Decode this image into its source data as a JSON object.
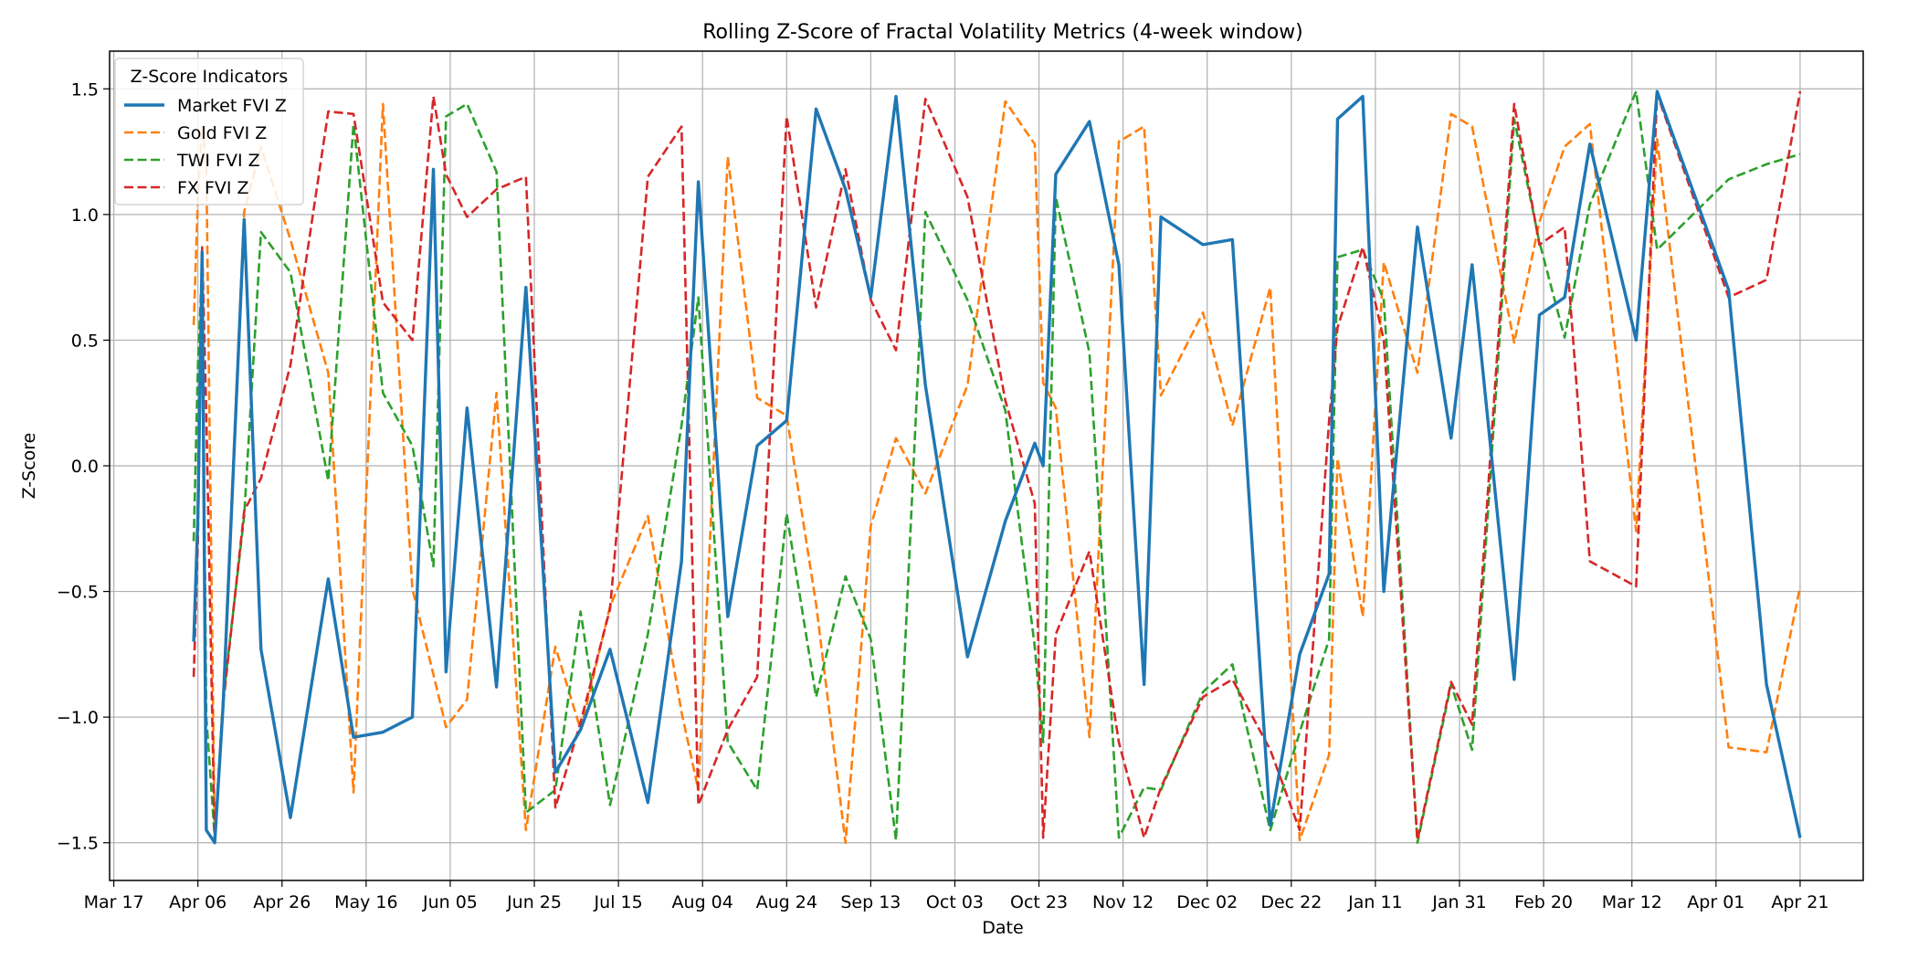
{
  "chart_data": {
    "type": "line",
    "title": "Rolling Z-Score of Fractal Volatility Metrics (4-week window)",
    "xlabel": "Date",
    "ylabel": "Z-Score",
    "ylim": [
      -1.65,
      1.65
    ],
    "xlim": [
      "2023-03-16",
      "2024-05-06"
    ],
    "x_ticks": [
      {
        "date": "2023-03-17",
        "label": "Mar 17"
      },
      {
        "date": "2023-04-06",
        "label": "Apr 06"
      },
      {
        "date": "2023-04-26",
        "label": "Apr 26"
      },
      {
        "date": "2023-05-16",
        "label": "May 16"
      },
      {
        "date": "2023-06-05",
        "label": "Jun 05"
      },
      {
        "date": "2023-06-25",
        "label": "Jun 25"
      },
      {
        "date": "2023-07-15",
        "label": "Jul 15"
      },
      {
        "date": "2023-08-04",
        "label": "Aug 04"
      },
      {
        "date": "2023-08-24",
        "label": "Aug 24"
      },
      {
        "date": "2023-09-13",
        "label": "Sep 13"
      },
      {
        "date": "2023-10-03",
        "label": "Oct 03"
      },
      {
        "date": "2023-10-23",
        "label": "Oct 23"
      },
      {
        "date": "2023-11-12",
        "label": "Nov 12"
      },
      {
        "date": "2023-12-02",
        "label": "Dec 02"
      },
      {
        "date": "2023-12-22",
        "label": "Dec 22"
      },
      {
        "date": "2024-01-11",
        "label": "Jan 11"
      },
      {
        "date": "2024-01-31",
        "label": "Jan 31"
      },
      {
        "date": "2024-02-20",
        "label": "Feb 20"
      },
      {
        "date": "2024-03-12",
        "label": "Mar 12"
      },
      {
        "date": "2024-04-01",
        "label": "Apr 01"
      },
      {
        "date": "2024-04-21",
        "label": "Apr 21"
      }
    ],
    "y_ticks": [
      {
        "value": 1.5,
        "label": "1.5"
      },
      {
        "value": 1.0,
        "label": "1.0"
      },
      {
        "value": 0.5,
        "label": "0.5"
      },
      {
        "value": 0.0,
        "label": "0.0"
      },
      {
        "value": -0.5,
        "label": "−0.5"
      },
      {
        "value": -1.0,
        "label": "−1.0"
      },
      {
        "value": -1.5,
        "label": "−1.5"
      }
    ],
    "grid": true,
    "legend": {
      "title": "Z-Score Indicators",
      "placement": "top-left"
    },
    "series": [
      {
        "name": "Market FVI Z",
        "color": "#1f77b4",
        "dash": "solid",
        "points": [
          [
            "2023-04-05",
            -0.7
          ],
          [
            "2023-04-06",
            -0.2
          ],
          [
            "2023-04-07",
            0.85
          ],
          [
            "2023-04-08",
            -1.45
          ],
          [
            "2023-04-10",
            -1.5
          ],
          [
            "2023-04-12",
            -0.95
          ],
          [
            "2023-04-17",
            0.98
          ],
          [
            "2023-04-21",
            -0.73
          ],
          [
            "2023-04-28",
            -1.4
          ],
          [
            "2023-05-07",
            -0.45
          ],
          [
            "2023-05-13",
            -1.08
          ],
          [
            "2023-05-20",
            -1.06
          ],
          [
            "2023-05-27",
            -1.0
          ],
          [
            "2023-06-01",
            1.18
          ],
          [
            "2023-06-04",
            -0.82
          ],
          [
            "2023-06-09",
            0.23
          ],
          [
            "2023-06-16",
            -0.88
          ],
          [
            "2023-06-23",
            0.71
          ],
          [
            "2023-06-30",
            -1.22
          ],
          [
            "2023-07-06",
            -1.05
          ],
          [
            "2023-07-13",
            -0.73
          ],
          [
            "2023-07-22",
            -1.34
          ],
          [
            "2023-07-30",
            -0.38
          ],
          [
            "2023-08-03",
            1.13
          ],
          [
            "2023-08-10",
            -0.6
          ],
          [
            "2023-08-17",
            0.08
          ],
          [
            "2023-08-24",
            0.18
          ],
          [
            "2023-08-31",
            1.42
          ],
          [
            "2023-09-07",
            1.1
          ],
          [
            "2023-09-13",
            0.67
          ],
          [
            "2023-09-19",
            1.47
          ],
          [
            "2023-09-26",
            0.32
          ],
          [
            "2023-10-06",
            -0.76
          ],
          [
            "2023-10-15",
            -0.22
          ],
          [
            "2023-10-22",
            0.09
          ],
          [
            "2023-10-24",
            0.0
          ],
          [
            "2023-10-27",
            1.16
          ],
          [
            "2023-11-04",
            1.37
          ],
          [
            "2023-11-11",
            0.8
          ],
          [
            "2023-11-17",
            -0.87
          ],
          [
            "2023-11-21",
            0.99
          ],
          [
            "2023-12-01",
            0.88
          ],
          [
            "2023-12-08",
            0.9
          ],
          [
            "2023-12-17",
            -1.43
          ],
          [
            "2023-12-24",
            -0.75
          ],
          [
            "2023-12-31",
            -0.43
          ],
          [
            "2024-01-02",
            1.38
          ],
          [
            "2024-01-08",
            1.47
          ],
          [
            "2024-01-13",
            -0.5
          ],
          [
            "2024-01-21",
            0.95
          ],
          [
            "2024-01-29",
            0.11
          ],
          [
            "2024-02-03",
            0.8
          ],
          [
            "2024-02-13",
            -0.85
          ],
          [
            "2024-02-19",
            0.6
          ],
          [
            "2024-02-25",
            0.67
          ],
          [
            "2024-03-02",
            1.28
          ],
          [
            "2024-03-13",
            0.5
          ],
          [
            "2024-03-18",
            1.49
          ],
          [
            "2024-04-04",
            0.7
          ],
          [
            "2024-04-13",
            -0.87
          ],
          [
            "2024-04-21",
            -1.48
          ]
        ]
      },
      {
        "name": "Gold FVI Z",
        "color": "#ff7f0e",
        "dash": "dashed",
        "points": [
          [
            "2023-04-05",
            0.56
          ],
          [
            "2023-04-06",
            1.07
          ],
          [
            "2023-04-07",
            1.35
          ],
          [
            "2023-04-08",
            1.2
          ],
          [
            "2023-04-10",
            -1.49
          ],
          [
            "2023-04-12",
            -0.92
          ],
          [
            "2023-04-17",
            1.01
          ],
          [
            "2023-04-21",
            1.27
          ],
          [
            "2023-04-28",
            0.9
          ],
          [
            "2023-05-07",
            0.37
          ],
          [
            "2023-05-13",
            -1.3
          ],
          [
            "2023-05-20",
            1.44
          ],
          [
            "2023-05-27",
            -0.49
          ],
          [
            "2023-06-01",
            -0.83
          ],
          [
            "2023-06-04",
            -1.04
          ],
          [
            "2023-06-09",
            -0.93
          ],
          [
            "2023-06-16",
            0.29
          ],
          [
            "2023-06-23",
            -1.45
          ],
          [
            "2023-06-30",
            -0.72
          ],
          [
            "2023-07-06",
            -1.05
          ],
          [
            "2023-07-13",
            -0.56
          ],
          [
            "2023-07-22",
            -0.2
          ],
          [
            "2023-07-30",
            -0.98
          ],
          [
            "2023-08-03",
            -1.29
          ],
          [
            "2023-08-10",
            1.23
          ],
          [
            "2023-08-17",
            0.27
          ],
          [
            "2023-08-24",
            0.2
          ],
          [
            "2023-08-31",
            -0.55
          ],
          [
            "2023-09-07",
            -1.5
          ],
          [
            "2023-09-13",
            -0.24
          ],
          [
            "2023-09-19",
            0.11
          ],
          [
            "2023-09-26",
            -0.11
          ],
          [
            "2023-10-06",
            0.32
          ],
          [
            "2023-10-15",
            1.45
          ],
          [
            "2023-10-22",
            1.28
          ],
          [
            "2023-10-24",
            0.33
          ],
          [
            "2023-10-27",
            0.23
          ],
          [
            "2023-11-04",
            -1.08
          ],
          [
            "2023-11-11",
            1.29
          ],
          [
            "2023-11-17",
            1.35
          ],
          [
            "2023-11-21",
            0.28
          ],
          [
            "2023-12-01",
            0.61
          ],
          [
            "2023-12-08",
            0.16
          ],
          [
            "2023-12-17",
            0.71
          ],
          [
            "2023-12-24",
            -1.49
          ],
          [
            "2023-12-31",
            -1.15
          ],
          [
            "2024-01-02",
            0.03
          ],
          [
            "2024-01-08",
            -0.6
          ],
          [
            "2024-01-13",
            0.81
          ],
          [
            "2024-01-21",
            0.37
          ],
          [
            "2024-01-29",
            1.4
          ],
          [
            "2024-02-03",
            1.35
          ],
          [
            "2024-02-13",
            0.49
          ],
          [
            "2024-02-19",
            0.97
          ],
          [
            "2024-02-25",
            1.27
          ],
          [
            "2024-03-02",
            1.36
          ],
          [
            "2024-03-13",
            -0.26
          ],
          [
            "2024-03-18",
            1.3
          ],
          [
            "2024-04-04",
            -1.12
          ],
          [
            "2024-04-13",
            -1.14
          ],
          [
            "2024-04-21",
            -0.48
          ]
        ]
      },
      {
        "name": "TWI FVI Z",
        "color": "#2ca02c",
        "dash": "dashed",
        "points": [
          [
            "2023-04-05",
            -0.3
          ],
          [
            "2023-04-06",
            0.4
          ],
          [
            "2023-04-07",
            0.8
          ],
          [
            "2023-04-08",
            -1.0
          ],
          [
            "2023-04-10",
            -1.48
          ],
          [
            "2023-04-12",
            -0.93
          ],
          [
            "2023-04-17",
            -0.2
          ],
          [
            "2023-04-21",
            0.93
          ],
          [
            "2023-04-28",
            0.77
          ],
          [
            "2023-05-07",
            -0.06
          ],
          [
            "2023-05-13",
            1.36
          ],
          [
            "2023-05-20",
            0.29
          ],
          [
            "2023-05-27",
            0.08
          ],
          [
            "2023-06-01",
            -0.4
          ],
          [
            "2023-06-04",
            1.39
          ],
          [
            "2023-06-09",
            1.44
          ],
          [
            "2023-06-16",
            1.17
          ],
          [
            "2023-06-23",
            -1.38
          ],
          [
            "2023-06-30",
            -1.29
          ],
          [
            "2023-07-06",
            -0.58
          ],
          [
            "2023-07-13",
            -1.35
          ],
          [
            "2023-07-22",
            -0.67
          ],
          [
            "2023-07-30",
            0.16
          ],
          [
            "2023-08-03",
            0.67
          ],
          [
            "2023-08-10",
            -1.1
          ],
          [
            "2023-08-17",
            -1.29
          ],
          [
            "2023-08-24",
            -0.19
          ],
          [
            "2023-08-31",
            -0.92
          ],
          [
            "2023-09-07",
            -0.44
          ],
          [
            "2023-09-13",
            -0.69
          ],
          [
            "2023-09-19",
            -1.49
          ],
          [
            "2023-09-26",
            1.01
          ],
          [
            "2023-10-06",
            0.66
          ],
          [
            "2023-10-15",
            0.22
          ],
          [
            "2023-10-22",
            -0.72
          ],
          [
            "2023-10-24",
            -1.1
          ],
          [
            "2023-10-27",
            1.07
          ],
          [
            "2023-11-04",
            0.45
          ],
          [
            "2023-11-11",
            -1.48
          ],
          [
            "2023-11-17",
            -1.28
          ],
          [
            "2023-11-21",
            -1.29
          ],
          [
            "2023-12-01",
            -0.9
          ],
          [
            "2023-12-08",
            -0.79
          ],
          [
            "2023-12-17",
            -1.45
          ],
          [
            "2023-12-24",
            -1.06
          ],
          [
            "2023-12-31",
            -0.69
          ],
          [
            "2024-01-02",
            0.83
          ],
          [
            "2024-01-08",
            0.86
          ],
          [
            "2024-01-13",
            0.66
          ],
          [
            "2024-01-21",
            -1.5
          ],
          [
            "2024-01-29",
            -0.87
          ],
          [
            "2024-02-03",
            -1.13
          ],
          [
            "2024-02-13",
            1.38
          ],
          [
            "2024-02-19",
            0.89
          ],
          [
            "2024-02-25",
            0.51
          ],
          [
            "2024-03-02",
            1.04
          ],
          [
            "2024-03-13",
            1.49
          ],
          [
            "2024-03-18",
            0.86
          ],
          [
            "2024-04-04",
            1.14
          ],
          [
            "2024-04-13",
            1.2
          ],
          [
            "2024-04-21",
            1.24
          ]
        ]
      },
      {
        "name": "FX FVI Z",
        "color": "#d62728",
        "dash": "dashed",
        "points": [
          [
            "2023-04-05",
            -0.84
          ],
          [
            "2023-04-06",
            -0.3
          ],
          [
            "2023-04-07",
            0.87
          ],
          [
            "2023-04-08",
            0.2
          ],
          [
            "2023-04-10",
            -1.5
          ],
          [
            "2023-04-12",
            -0.95
          ],
          [
            "2023-04-17",
            -0.18
          ],
          [
            "2023-04-21",
            -0.05
          ],
          [
            "2023-04-28",
            0.4
          ],
          [
            "2023-05-07",
            1.41
          ],
          [
            "2023-05-13",
            1.4
          ],
          [
            "2023-05-20",
            0.65
          ],
          [
            "2023-05-27",
            0.5
          ],
          [
            "2023-06-01",
            1.47
          ],
          [
            "2023-06-04",
            1.16
          ],
          [
            "2023-06-09",
            0.99
          ],
          [
            "2023-06-16",
            1.1
          ],
          [
            "2023-06-23",
            1.15
          ],
          [
            "2023-06-30",
            -1.36
          ],
          [
            "2023-07-06",
            -1.02
          ],
          [
            "2023-07-13",
            -0.57
          ],
          [
            "2023-07-22",
            1.15
          ],
          [
            "2023-07-30",
            1.35
          ],
          [
            "2023-08-03",
            -1.35
          ],
          [
            "2023-08-10",
            -1.05
          ],
          [
            "2023-08-17",
            -0.84
          ],
          [
            "2023-08-24",
            1.39
          ],
          [
            "2023-08-31",
            0.63
          ],
          [
            "2023-09-07",
            1.18
          ],
          [
            "2023-09-13",
            0.66
          ],
          [
            "2023-09-19",
            0.46
          ],
          [
            "2023-09-26",
            1.46
          ],
          [
            "2023-10-06",
            1.07
          ],
          [
            "2023-10-15",
            0.26
          ],
          [
            "2023-10-22",
            -0.15
          ],
          [
            "2023-10-24",
            -1.48
          ],
          [
            "2023-10-27",
            -0.67
          ],
          [
            "2023-11-04",
            -0.34
          ],
          [
            "2023-11-11",
            -1.1
          ],
          [
            "2023-11-17",
            -1.48
          ],
          [
            "2023-11-21",
            -1.28
          ],
          [
            "2023-12-01",
            -0.92
          ],
          [
            "2023-12-08",
            -0.85
          ],
          [
            "2023-12-17",
            -1.13
          ],
          [
            "2023-12-24",
            -1.45
          ],
          [
            "2023-12-31",
            0.18
          ],
          [
            "2024-01-02",
            0.55
          ],
          [
            "2024-01-08",
            0.87
          ],
          [
            "2024-01-13",
            0.5
          ],
          [
            "2024-01-21",
            -1.49
          ],
          [
            "2024-01-29",
            -0.86
          ],
          [
            "2024-02-03",
            -1.03
          ],
          [
            "2024-02-13",
            1.44
          ],
          [
            "2024-02-19",
            0.88
          ],
          [
            "2024-02-25",
            0.95
          ],
          [
            "2024-03-02",
            -0.38
          ],
          [
            "2024-03-13",
            -0.48
          ],
          [
            "2024-03-18",
            1.48
          ],
          [
            "2024-04-04",
            0.67
          ],
          [
            "2024-04-13",
            0.74
          ],
          [
            "2024-04-21",
            1.49
          ]
        ]
      }
    ]
  }
}
